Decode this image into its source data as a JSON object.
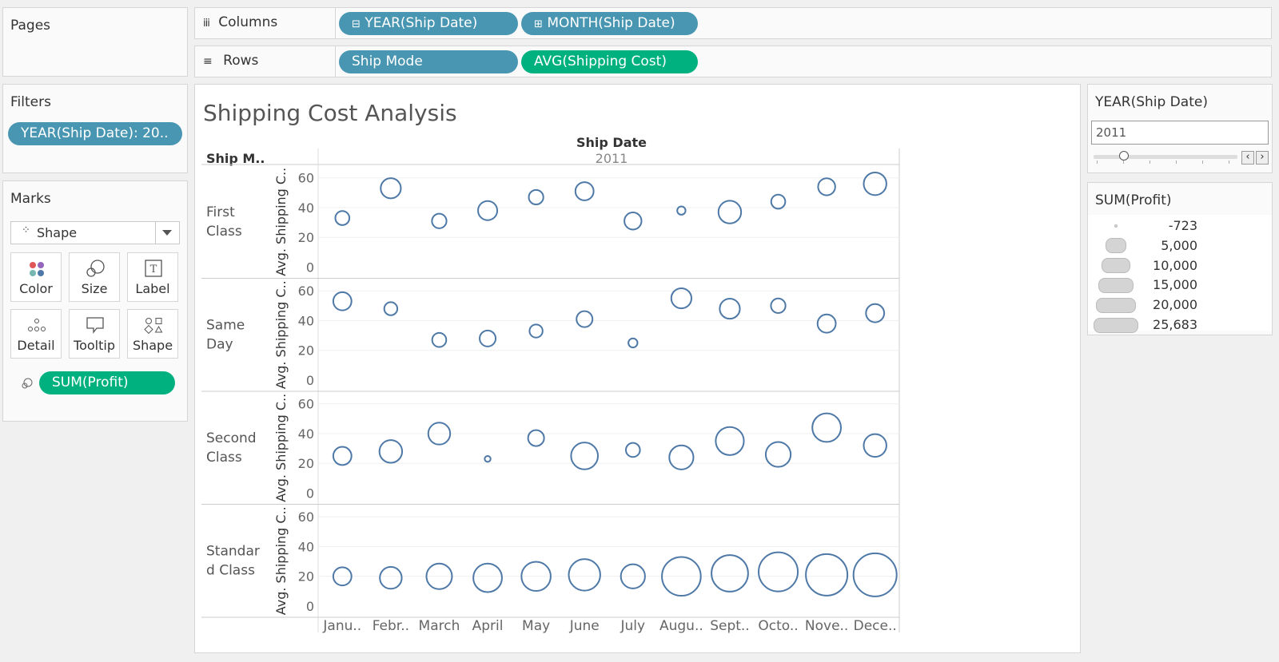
{
  "pages": {
    "title": "Pages"
  },
  "columns": {
    "label": "Columns",
    "pills": [
      "YEAR(Ship Date)",
      "MONTH(Ship Date)"
    ]
  },
  "rows": {
    "label": "Rows",
    "pills": [
      "Ship Mode",
      "AVG(Shipping Cost)"
    ]
  },
  "filters": {
    "title": "Filters",
    "pill": "YEAR(Ship Date): 20.."
  },
  "marks": {
    "title": "Marks",
    "type": "Shape",
    "buttons": [
      "Color",
      "Size",
      "Label",
      "Detail",
      "Tooltip",
      "Shape"
    ],
    "size_pill": "SUM(Profit)"
  },
  "year_filter": {
    "title": "YEAR(Ship Date)",
    "value": "2011"
  },
  "size_legend": {
    "title": "SUM(Profit)",
    "items": [
      "-723",
      "5,000",
      "10,000",
      "15,000",
      "20,000",
      "25,683"
    ]
  },
  "chart_data": {
    "type": "scatter",
    "title": "Shipping Cost Analysis",
    "column_header": "Ship Date",
    "column_sub": "2011",
    "row_header": "Ship M..",
    "ylabel": "Avg. Shipping C..",
    "yticks": [
      "60",
      "40",
      "20",
      "0"
    ],
    "ylim": [
      0,
      62
    ],
    "months": [
      "Janu..",
      "Febr..",
      "March",
      "April",
      "May",
      "June",
      "July",
      "Augu..",
      "Sept..",
      "Octo..",
      "Nove..",
      "Dece.."
    ],
    "rows": [
      {
        "label": "First Class",
        "values": [
          33,
          53,
          31,
          38,
          47,
          51,
          31,
          38,
          37,
          44,
          54,
          56
        ],
        "profit": [
          800,
          3500,
          1000,
          3000,
          1000,
          2500,
          2000,
          -500,
          5000,
          800,
          2000,
          5000
        ]
      },
      {
        "label": "Same Day",
        "values": [
          53,
          48,
          27,
          28,
          33,
          41,
          25,
          55,
          48,
          50,
          38,
          45
        ],
        "profit": [
          2500,
          500,
          800,
          1500,
          500,
          1500,
          -400,
          3500,
          3500,
          1000,
          2500,
          2500
        ]
      },
      {
        "label": "Second Class",
        "values": [
          25,
          28,
          40,
          23,
          37,
          25,
          29,
          24,
          35,
          26,
          44,
          32
        ],
        "profit": [
          2500,
          5000,
          4500,
          -700,
          1500,
          8000,
          800,
          6000,
          9000,
          6500,
          9500,
          5000
        ]
      },
      {
        "label": "Standard Class",
        "values": [
          20,
          19,
          20,
          19,
          20,
          21,
          20,
          20,
          22,
          23,
          21,
          21
        ],
        "profit": [
          2500,
          4500,
          7000,
          9500,
          10000,
          12000,
          6000,
          20000,
          17500,
          20500,
          23500,
          25683
        ]
      }
    ],
    "mark_color": "#4e79a7",
    "grid": true
  }
}
